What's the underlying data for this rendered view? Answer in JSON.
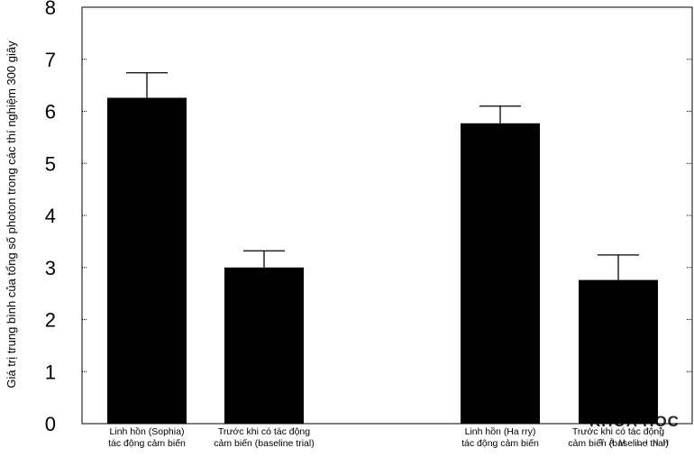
{
  "chart_data": {
    "type": "bar",
    "title": "",
    "xlabel": "",
    "ylabel": "Giá trị trung bình của tổng số photon trong các thí nghiệm 300 giây",
    "ylim": [
      0,
      8
    ],
    "yticks": [
      0,
      1,
      2,
      3,
      4,
      5,
      6,
      7,
      8
    ],
    "grid": false,
    "legend": "none",
    "bar_color": "#000000",
    "categories": [
      [
        "Linh hồn (Sophia)",
        "tác động cảm biến"
      ],
      [
        "Trước khi có tác động",
        "cảm biến (baseline trial)"
      ],
      [
        "Linh hồn (Ha rry)",
        "tác động cảm biến"
      ],
      [
        "Trước khi có tác động",
        "cảm biến (baseline trial)"
      ]
    ],
    "values": [
      6.26,
      3.0,
      5.77,
      2.76
    ],
    "error_upper": [
      6.74,
      3.32,
      6.1,
      3.24
    ]
  },
  "watermark": {
    "main": "KHOA HỌC",
    "sub": "TÂM LINH"
  }
}
